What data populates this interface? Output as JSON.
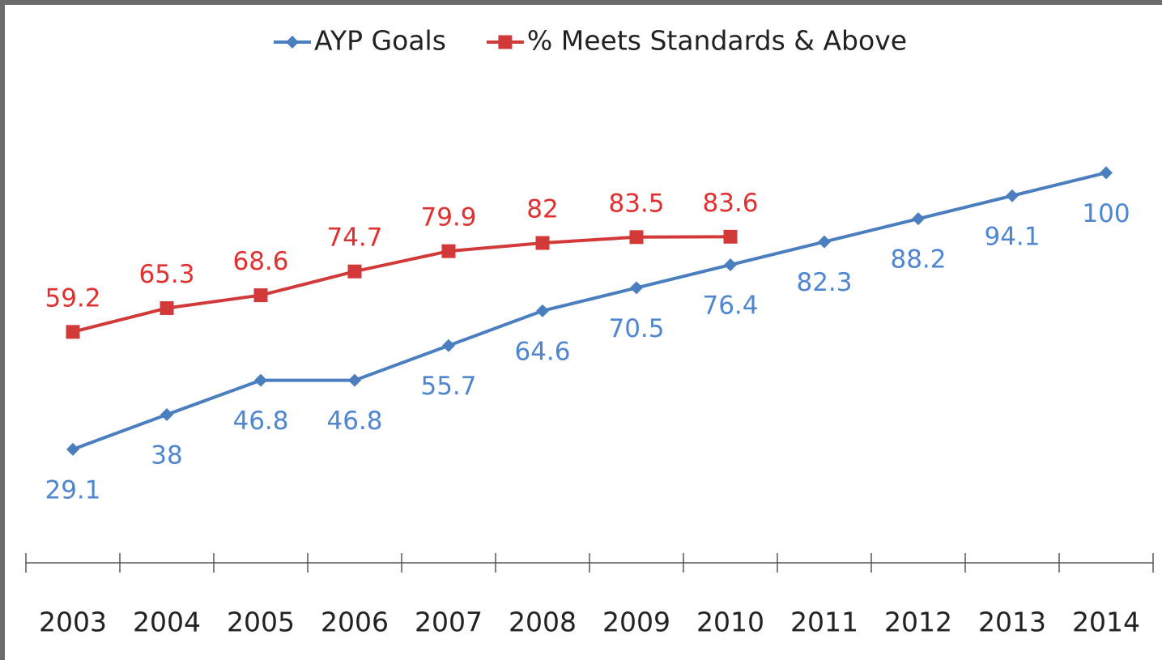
{
  "chart_data": {
    "type": "line",
    "categories": [
      "2003",
      "2004",
      "2005",
      "2006",
      "2007",
      "2008",
      "2009",
      "2010",
      "2011",
      "2012",
      "2013",
      "2014"
    ],
    "series": [
      {
        "name": "AYP Goals",
        "color": "#4a7ebf",
        "label_color": "#4f86d0",
        "marker": "diamond",
        "values": [
          29.1,
          38,
          46.8,
          46.8,
          55.7,
          64.6,
          70.5,
          76.4,
          82.3,
          88.2,
          94.1,
          100
        ]
      },
      {
        "name": "% Meets Standards & Above",
        "color": "#d23a3a",
        "label_color": "#e03030",
        "marker": "square",
        "values": [
          59.2,
          65.3,
          68.6,
          74.7,
          79.9,
          82,
          83.5,
          83.6,
          null,
          null,
          null,
          null
        ]
      }
    ],
    "ylim": [
      0,
      120
    ],
    "legend": "top"
  }
}
